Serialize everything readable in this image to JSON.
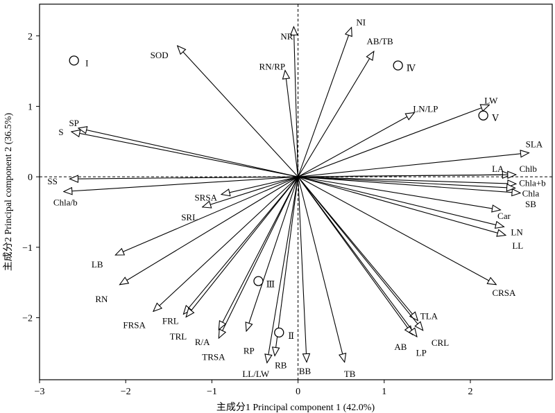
{
  "chart_data": {
    "type": "biplot",
    "xlabel": "主成分1 Principal component 1 (42.0%)",
    "ylabel": "主成分2 Principal component 2 (36.5%)",
    "xlim": [
      -3.0,
      2.95
    ],
    "ylim": [
      -2.88,
      2.45
    ],
    "xticks": [
      -3,
      -2,
      -1,
      0,
      1,
      2
    ],
    "yticks": [
      -2,
      -1,
      0,
      1,
      2
    ],
    "xtick_labels": [
      "−3",
      "−2",
      "−1",
      "0",
      "1",
      "2"
    ],
    "ytick_labels": [
      "−2",
      "−1",
      "0",
      "1",
      "2"
    ],
    "reference_lines": "dashed lines at x = 0 and y = 0",
    "loadings": [
      {
        "name": "NR",
        "x": -0.05,
        "y": 2.13,
        "label": "NR",
        "lx": -0.13,
        "ly": 2.0
      },
      {
        "name": "NI",
        "x": 0.62,
        "y": 2.12,
        "label": "NI",
        "lx": 0.73,
        "ly": 2.2
      },
      {
        "name": "AB/TB",
        "x": 0.88,
        "y": 1.78,
        "label": "AB/TB",
        "lx": 0.95,
        "ly": 1.93
      },
      {
        "name": "SOD",
        "x": -1.4,
        "y": 1.86,
        "label": "SOD",
        "lx": -1.61,
        "ly": 1.73
      },
      {
        "name": "RN/RP",
        "x": -0.15,
        "y": 1.51,
        "label": "RN/RP",
        "lx": -0.3,
        "ly": 1.57
      },
      {
        "name": "LN/LP",
        "x": 1.35,
        "y": 0.91,
        "label": "LN/LP",
        "lx": 1.48,
        "ly": 0.97
      },
      {
        "name": "LW",
        "x": 2.22,
        "y": 1.02,
        "label": "LW",
        "lx": 2.24,
        "ly": 1.09
      },
      {
        "name": "SLA",
        "x": 2.68,
        "y": 0.34,
        "label": "SLA",
        "lx": 2.74,
        "ly": 0.47
      },
      {
        "name": "SP",
        "x": -2.55,
        "y": 0.69,
        "label": "SP",
        "lx": -2.6,
        "ly": 0.77
      },
      {
        "name": "S",
        "x": -2.63,
        "y": 0.64,
        "label": "S",
        "lx": -2.75,
        "ly": 0.64
      },
      {
        "name": "SS",
        "x": -2.65,
        "y": -0.03,
        "label": "SS",
        "lx": -2.85,
        "ly": -0.06
      },
      {
        "name": "Chla/b",
        "x": -2.72,
        "y": -0.21,
        "label": "Chla/b",
        "lx": -2.7,
        "ly": -0.36
      },
      {
        "name": "LA",
        "x": 2.47,
        "y": 0.03,
        "label": "LA",
        "lx": 2.32,
        "ly": 0.12
      },
      {
        "name": "Chlb",
        "x": 2.53,
        "y": 0.03,
        "label": "Chlb",
        "lx": 2.67,
        "ly": 0.12
      },
      {
        "name": "Chla+b",
        "x": 2.53,
        "y": -0.1,
        "label": "Chla+b",
        "lx": 2.72,
        "ly": -0.08
      },
      {
        "name": "Chla",
        "x": 2.52,
        "y": -0.16,
        "label": "Chla",
        "lx": 2.7,
        "ly": -0.23
      },
      {
        "name": "SB",
        "x": 2.58,
        "y": -0.23,
        "label": "SB",
        "lx": 2.7,
        "ly": -0.38
      },
      {
        "name": "Car",
        "x": 2.35,
        "y": -0.47,
        "label": "Car",
        "lx": 2.39,
        "ly": -0.55
      },
      {
        "name": "LN",
        "x": 2.39,
        "y": -0.71,
        "label": "LN",
        "lx": 2.54,
        "ly": -0.78
      },
      {
        "name": "LL",
        "x": 2.41,
        "y": -0.83,
        "label": "LL",
        "lx": 2.55,
        "ly": -0.97
      },
      {
        "name": "CRSA",
        "x": 2.3,
        "y": -1.53,
        "label": "CRSA",
        "lx": 2.39,
        "ly": -1.64
      },
      {
        "name": "SRSA",
        "x": -0.89,
        "y": -0.25,
        "label": "SRSA",
        "lx": -1.07,
        "ly": -0.29
      },
      {
        "name": "SRL",
        "x": -1.11,
        "y": -0.43,
        "label": "SRL",
        "lx": -1.26,
        "ly": -0.57
      },
      {
        "name": "LB",
        "x": -2.12,
        "y": -1.11,
        "label": "LB",
        "lx": -2.33,
        "ly": -1.24
      },
      {
        "name": "RN",
        "x": -2.07,
        "y": -1.53,
        "label": "RN",
        "lx": -2.28,
        "ly": -1.73
      },
      {
        "name": "FRSA",
        "x": -1.68,
        "y": -1.91,
        "label": "FRSA",
        "lx": -1.9,
        "ly": -2.1
      },
      {
        "name": "FRL",
        "x": -1.33,
        "y": -1.95,
        "label": "FRL",
        "lx": -1.48,
        "ly": -2.04
      },
      {
        "name": "TRL",
        "x": -1.3,
        "y": -1.99,
        "label": "TRL",
        "lx": -1.39,
        "ly": -2.26
      },
      {
        "name": "R/A",
        "x": -0.92,
        "y": -2.17,
        "label": "R/A",
        "lx": -1.11,
        "ly": -2.34
      },
      {
        "name": "TRSA",
        "x": -0.92,
        "y": -2.29,
        "label": "TRSA",
        "lx": -0.98,
        "ly": -2.55
      },
      {
        "name": "RP",
        "x": -0.6,
        "y": -2.19,
        "label": "RP",
        "lx": -0.57,
        "ly": -2.46
      },
      {
        "name": "LL/LW",
        "x": -0.36,
        "y": -2.64,
        "label": "LL/LW",
        "lx": -0.49,
        "ly": -2.79
      },
      {
        "name": "RB",
        "x": -0.27,
        "y": -2.54,
        "label": "RB",
        "lx": -0.2,
        "ly": -2.67
      },
      {
        "name": "BB",
        "x": 0.1,
        "y": -2.63,
        "label": "BB",
        "lx": 0.08,
        "ly": -2.75
      },
      {
        "name": "TB",
        "x": 0.54,
        "y": -2.63,
        "label": "TB",
        "lx": 0.6,
        "ly": -2.79
      },
      {
        "name": "TLA",
        "x": 1.39,
        "y": -2.04,
        "label": "TLA",
        "lx": 1.52,
        "ly": -1.97
      },
      {
        "name": "CRL",
        "x": 1.45,
        "y": -2.18,
        "label": "CRL",
        "lx": 1.65,
        "ly": -2.35
      },
      {
        "name": "AB",
        "x": 1.33,
        "y": -2.24,
        "label": "AB",
        "lx": 1.19,
        "ly": -2.41
      },
      {
        "name": "LP",
        "x": 1.38,
        "y": -2.27,
        "label": "LP",
        "lx": 1.43,
        "ly": -2.49
      }
    ],
    "samples": [
      {
        "name": "I",
        "x": -2.6,
        "y": 1.65,
        "label": "I",
        "lx": -2.45,
        "ly": 1.62
      },
      {
        "name": "Ⅳ",
        "x": 1.16,
        "y": 1.58,
        "label": "Ⅳ",
        "lx": 1.31,
        "ly": 1.55
      },
      {
        "name": "Ⅴ",
        "x": 2.15,
        "y": 0.87,
        "label": "Ⅴ",
        "lx": 2.29,
        "ly": 0.84
      },
      {
        "name": "Ⅲ",
        "x": -0.46,
        "y": -1.48,
        "label": "Ⅲ",
        "lx": -0.32,
        "ly": -1.52
      },
      {
        "name": "Ⅱ",
        "x": -0.22,
        "y": -2.21,
        "label": "Ⅱ",
        "lx": -0.08,
        "ly": -2.25
      }
    ]
  }
}
